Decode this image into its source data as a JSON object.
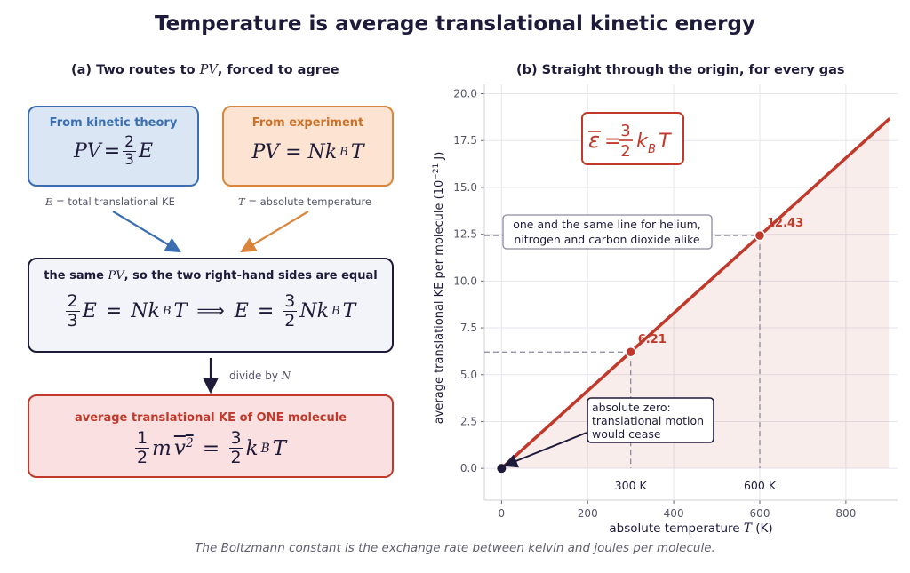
{
  "title": "Temperature is average translational kinetic energy",
  "caption": "The Boltzmann constant is the exchange rate between kelvin and joules per molecule.",
  "panel_a": {
    "title_prefix": "(a)  Two routes to ",
    "title_pv": "PV",
    "title_suffix": ", forced to agree",
    "kinetic_box": {
      "heading": "From kinetic theory",
      "eq_lhs": "PV",
      "eq_num": "2",
      "eq_den": "3",
      "eq_rhs": "E",
      "note_var": "E",
      "note_text": " =  total translational KE",
      "color": "#3a6eb0",
      "fill": "#dbe6f5"
    },
    "experiment_box": {
      "heading": "From experiment",
      "eq": "PV = Nk",
      "eq_sub": "B",
      "eq_tail": "T",
      "note_var": "T",
      "note_text": " =  absolute temperature",
      "color": "#d9853b",
      "fill": "#fde3d1"
    },
    "equate_box": {
      "heading_prefix": "the same ",
      "heading_pv": "PV",
      "heading_suffix": ", so the two right-hand sides are equal",
      "color": "#1e1b3a",
      "fill": "#f3f4f9"
    },
    "divide_label_prefix": "divide by ",
    "divide_label_var": "N",
    "result_box": {
      "heading": "average translational KE of ONE molecule",
      "color": "#c0392b",
      "fill": "#fae0e0"
    }
  },
  "panel_b": {
    "title": "(b)  Straight through the origin, for every gas",
    "formula_box": {
      "color": "#c0392b"
    },
    "annotation_gases": "one and the same line for helium,\nnitrogen and carbon dioxide alike",
    "annotation_zero": "absolute zero:\ntranslational motion\nwould cease",
    "tick_label_300": "300 K",
    "tick_label_600": "600 K"
  },
  "chart_data": {
    "type": "line",
    "xlabel": "absolute temperature T  (K)",
    "ylabel": "average translational KE per molecule  (10^-21 J)",
    "xlim": [
      -40,
      920
    ],
    "ylim": [
      -1.7,
      20.5
    ],
    "xticks": [
      0,
      200,
      400,
      600,
      800
    ],
    "yticks": [
      0.0,
      2.5,
      5.0,
      7.5,
      10.0,
      12.5,
      15.0,
      17.5,
      20.0
    ],
    "grid": true,
    "line": {
      "x": [
        0,
        900
      ],
      "y": [
        0,
        18.64
      ],
      "color": "#c0392b"
    },
    "points": [
      {
        "x": 0,
        "y": 0,
        "label": ""
      },
      {
        "x": 300,
        "y": 6.21,
        "label": "6.21"
      },
      {
        "x": 600,
        "y": 12.43,
        "label": "12.43"
      }
    ]
  }
}
